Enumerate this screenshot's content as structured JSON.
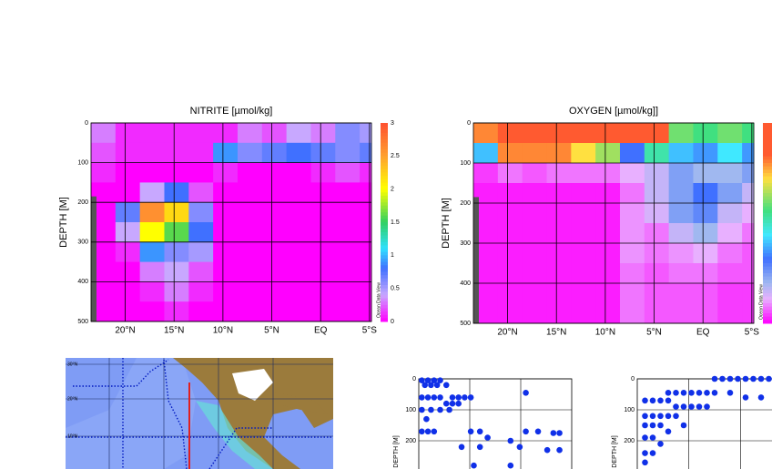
{
  "chart_data": [
    {
      "type": "heatmap",
      "title": "NITRITE [µmol/kg]",
      "ylabel": "DEPTH [M]",
      "watermark": "Ocean Data View",
      "xlim": [
        23.5,
        -5.2
      ],
      "xticks": [
        {
          "value": 20,
          "label": "20°N"
        },
        {
          "value": 15,
          "label": "15°N"
        },
        {
          "value": 10,
          "label": "10°N"
        },
        {
          "value": 5,
          "label": "5°N"
        },
        {
          "value": 0,
          "label": "EQ"
        },
        {
          "value": -5,
          "label": "5°S"
        }
      ],
      "ylim": [
        0,
        500
      ],
      "yticks": [
        0,
        100,
        200,
        300,
        400,
        500
      ],
      "grid": true,
      "x_bins": [
        23.5,
        21,
        18.5,
        16,
        13.5,
        11,
        8.5,
        6,
        3.5,
        1,
        -1.5,
        -4,
        -5.2
      ],
      "y_bins": [
        0,
        50,
        100,
        150,
        200,
        250,
        300,
        350,
        400,
        450,
        500
      ],
      "z": [
        [
          0.3,
          0.1,
          0.1,
          0.1,
          0.1,
          0.1,
          0.3,
          0.2,
          0.4,
          0.3,
          0.6,
          0.5
        ],
        [
          0.2,
          0.1,
          0.1,
          0.1,
          0.1,
          0.9,
          0.6,
          0.7,
          0.8,
          0.7,
          0.6,
          0.7
        ],
        [
          0.1,
          0,
          0,
          0,
          0,
          0.1,
          0,
          0,
          0,
          0.1,
          0.2,
          0.1
        ],
        [
          0,
          0,
          0.4,
          0.8,
          0.2,
          0,
          0,
          0,
          0,
          0,
          0,
          0
        ],
        [
          0,
          0.7,
          2.6,
          2.2,
          0.6,
          0,
          0,
          0,
          0,
          0,
          0,
          0
        ],
        [
          0,
          0.4,
          2.0,
          1.6,
          0.8,
          0,
          0,
          0,
          0,
          0,
          0,
          0
        ],
        [
          0,
          0.1,
          0.9,
          0.6,
          0.5,
          0,
          0,
          0,
          0,
          0,
          0,
          0
        ],
        [
          0,
          0,
          0.3,
          0.4,
          0.2,
          0,
          0,
          0,
          0,
          0,
          0,
          0
        ],
        [
          0,
          0,
          0.1,
          0.3,
          0.1,
          0,
          0,
          0,
          0,
          0,
          0,
          0
        ],
        [
          0,
          0,
          0,
          0.1,
          0,
          0,
          0,
          0,
          0,
          0,
          0,
          0
        ]
      ],
      "clim": [
        0,
        3
      ],
      "cticks": [
        0,
        0.5,
        1,
        1.5,
        2,
        2.5,
        3
      ],
      "colorscale": [
        [
          0,
          "#ff00ff"
        ],
        [
          0.4,
          "#c8a8ff"
        ],
        [
          0.8,
          "#4070ff"
        ],
        [
          1.1,
          "#30e0ff"
        ],
        [
          1.5,
          "#30d060"
        ],
        [
          2,
          "#ffff00"
        ],
        [
          2.5,
          "#ffa030"
        ],
        [
          3,
          "#ff5030"
        ]
      ]
    },
    {
      "type": "heatmap",
      "title": "OXYGEN [µmol/kg]]",
      "ylabel": "DEPTH [M]",
      "watermark": "Ocean Data View",
      "xlim": [
        23.5,
        -5.2
      ],
      "xticks": [
        {
          "value": 20,
          "label": "20°N"
        },
        {
          "value": 15,
          "label": "15°N"
        },
        {
          "value": 10,
          "label": "10°N"
        },
        {
          "value": 5,
          "label": "5°N"
        },
        {
          "value": 0,
          "label": "EQ"
        },
        {
          "value": -5,
          "label": "5°S"
        }
      ],
      "ylim": [
        0,
        500
      ],
      "yticks": [
        0,
        100,
        200,
        300,
        400,
        500
      ],
      "grid": true,
      "x_bins": [
        23.5,
        21,
        18.5,
        16,
        13.5,
        11,
        8.5,
        6,
        3.5,
        1,
        -1.5,
        -4,
        -5.2
      ],
      "y_bins": [
        0,
        50,
        100,
        150,
        200,
        250,
        300,
        350,
        400,
        450,
        500
      ],
      "z": [
        [
          200,
          230,
          230,
          230,
          230,
          230,
          220,
          220,
          150,
          140,
          150,
          140
        ],
        [
          100,
          200,
          200,
          200,
          180,
          160,
          80,
          130,
          100,
          90,
          110,
          90
        ],
        [
          10,
          20,
          15,
          20,
          20,
          20,
          30,
          40,
          60,
          50,
          50,
          60
        ],
        [
          5,
          5,
          5,
          5,
          5,
          5,
          20,
          40,
          60,
          80,
          60,
          40
        ],
        [
          5,
          5,
          5,
          5,
          5,
          5,
          25,
          35,
          60,
          70,
          40,
          30
        ],
        [
          5,
          5,
          5,
          5,
          5,
          5,
          25,
          20,
          40,
          50,
          30,
          20
        ],
        [
          5,
          5,
          5,
          5,
          5,
          5,
          25,
          20,
          25,
          30,
          20,
          15
        ],
        [
          5,
          5,
          5,
          5,
          5,
          5,
          20,
          15,
          20,
          20,
          15,
          15
        ],
        [
          5,
          5,
          5,
          5,
          5,
          5,
          20,
          15,
          15,
          15,
          10,
          10
        ],
        [
          5,
          5,
          5,
          5,
          5,
          5,
          20,
          15,
          15,
          15,
          10,
          10
        ]
      ],
      "clim": [
        0,
        250
      ],
      "colorscale": [
        [
          0,
          "#ff00ff"
        ],
        [
          30,
          "#e8b0ff"
        ],
        [
          50,
          "#a0b8f0"
        ],
        [
          80,
          "#4070ff"
        ],
        [
          110,
          "#40e8ff"
        ],
        [
          140,
          "#40e080"
        ],
        [
          180,
          "#ffe040"
        ],
        [
          210,
          "#ff5a30"
        ]
      ]
    },
    {
      "type": "map",
      "lat_labels": [
        "30°N",
        "20°N",
        "10°N"
      ]
    },
    {
      "type": "scatter",
      "ylabel": "DEPTH [M]",
      "color": "#1030e8",
      "xlim": [
        0,
        1
      ],
      "ylim": [
        0,
        300
      ],
      "yticks": [
        0,
        100,
        200,
        300
      ],
      "grid": true,
      "x": [
        0.02,
        0.06,
        0.1,
        0.14,
        0.04,
        0.08,
        0.12,
        0.18,
        0.22,
        0.26,
        0.3,
        0.34,
        0.02,
        0.06,
        0.1,
        0.14,
        0.18,
        0.22,
        0.26,
        0.02,
        0.08,
        0.14,
        0.2,
        0.05,
        0.7,
        0.02,
        0.06,
        0.1,
        0.34,
        0.4,
        0.45,
        0.7,
        0.78,
        0.88,
        0.92,
        0.28,
        0.4,
        0.6,
        0.66,
        0.84,
        0.92,
        0.36,
        0.6
      ],
      "y": [
        5,
        5,
        5,
        5,
        20,
        20,
        20,
        20,
        60,
        60,
        60,
        60,
        60,
        60,
        60,
        60,
        80,
        80,
        80,
        100,
        100,
        100,
        100,
        130,
        45,
        170,
        170,
        170,
        170,
        170,
        190,
        170,
        170,
        175,
        175,
        220,
        220,
        200,
        220,
        230,
        230,
        280,
        280
      ]
    },
    {
      "type": "scatter",
      "ylabel": "DEPTH [M]",
      "color": "#1030e8",
      "xlim": [
        0,
        1
      ],
      "ylim": [
        0,
        300
      ],
      "yticks": [
        0,
        100,
        200,
        300
      ],
      "grid": true,
      "x": [
        0.5,
        0.55,
        0.6,
        0.65,
        0.7,
        0.75,
        0.8,
        0.85,
        0.9,
        0.95,
        0.2,
        0.25,
        0.3,
        0.35,
        0.4,
        0.45,
        0.5,
        0.6,
        0.7,
        0.8,
        0.9,
        0.05,
        0.1,
        0.15,
        0.2,
        0.25,
        0.3,
        0.35,
        0.4,
        0.45,
        0.05,
        0.1,
        0.15,
        0.2,
        0.25,
        0.3,
        0.05,
        0.1,
        0.15,
        0.2,
        0.05,
        0.1,
        0.15,
        0.05,
        0.1,
        0.05
      ],
      "y": [
        0,
        0,
        0,
        0,
        0,
        0,
        0,
        0,
        0,
        0,
        45,
        45,
        45,
        45,
        45,
        45,
        45,
        45,
        60,
        60,
        60,
        70,
        70,
        70,
        70,
        90,
        90,
        90,
        90,
        90,
        120,
        120,
        120,
        120,
        120,
        150,
        150,
        150,
        150,
        170,
        190,
        190,
        210,
        240,
        240,
        270
      ]
    }
  ]
}
